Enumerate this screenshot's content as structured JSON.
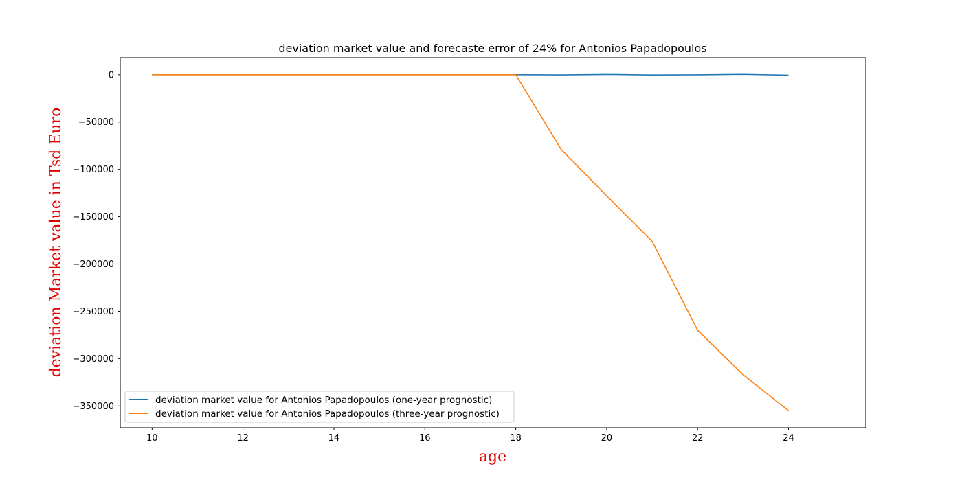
{
  "chart_data": {
    "type": "line",
    "title": "deviation market value and forecaste error of 24% for Antonios Papadopoulos",
    "xlabel": "age",
    "ylabel": "deviation Market value in Tsd Euro",
    "xlim": [
      9.3,
      25.7
    ],
    "ylim": [
      -373000,
      18000
    ],
    "xticks": [
      10,
      12,
      14,
      16,
      18,
      20,
      22,
      24
    ],
    "yticks": [
      0,
      -50000,
      -100000,
      -150000,
      -200000,
      -250000,
      -300000,
      -350000
    ],
    "grid": false,
    "legend_position": "lower-left",
    "label_color": "#e00000",
    "x": [
      10,
      11,
      12,
      13,
      14,
      15,
      16,
      17,
      18,
      19,
      20,
      21,
      22,
      23,
      24
    ],
    "series": [
      {
        "name": "deviation market value for Antonios Papadopoulos (one-year prognostic)",
        "color": "#1f77b4",
        "values": [
          0,
          0,
          0,
          0,
          0,
          0,
          0,
          0,
          0,
          -200,
          300,
          -300,
          -100,
          400,
          -500
        ]
      },
      {
        "name": "deviation market value for Antonios Papadopoulos (three-year prognostic)",
        "color": "#ff7f0e",
        "values": [
          0,
          0,
          0,
          0,
          0,
          0,
          0,
          0,
          0,
          -79000,
          -128000,
          -176000,
          -270000,
          -317000,
          -355000
        ]
      }
    ]
  }
}
